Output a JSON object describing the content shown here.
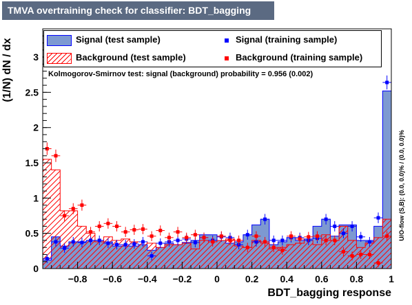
{
  "title": "TMVA overtraining check for classifier: BDT_bagging",
  "legend": {
    "sig_test": "Signal (test sample)",
    "sig_train": "Signal (training sample)",
    "bkg_test": "Background (test sample)",
    "bkg_train": "Background (training sample)"
  },
  "ks_text": "Kolmogorov-Smirnov test: signal (background) probability = 0.956 (0.002)",
  "overflow_text": "U/O-flow (S,B): (0.0, 0.0)% / (0.0, 0.0)%",
  "colors": {
    "signal_fill": "#7d99d1",
    "signal_line": "#0000ff",
    "background": "#ff0000",
    "title_bg": "#5b6a82"
  },
  "chart_data": {
    "type": "histogram",
    "title": "TMVA overtraining check for classifier: BDT_bagging",
    "xlabel": "BDT_bagging response",
    "ylabel": "(1/N) dN / dx",
    "xlim": [
      -1.0,
      1.0
    ],
    "ylim": [
      0,
      3.4
    ],
    "xticks": [
      -0.8,
      -0.6,
      -0.4,
      -0.2,
      0,
      0.2,
      0.4,
      0.6,
      0.8,
      1
    ],
    "xtick_labels": [
      "−0.8",
      "−0.6",
      "−0.4",
      "−0.2",
      "0",
      "0.2",
      "0.4",
      "0.6",
      "0.8",
      "1"
    ],
    "yticks": [
      0,
      0.5,
      1,
      1.5,
      2,
      2.5,
      3
    ],
    "ytick_labels": [
      "0",
      "0.5",
      "1",
      "1.5",
      "2",
      "2.5",
      "3"
    ],
    "bins": 40,
    "signal_test": [
      0.12,
      0.45,
      0.32,
      0.38,
      0.38,
      0.4,
      0.4,
      0.38,
      0.32,
      0.32,
      0.32,
      0.34,
      0.26,
      0.3,
      0.36,
      0.34,
      0.37,
      0.4,
      0.48,
      0.48,
      0.4,
      0.36,
      0.38,
      0.48,
      0.62,
      0.7,
      0.34,
      0.38,
      0.44,
      0.4,
      0.42,
      0.6,
      0.7,
      0.46,
      0.62,
      0.62,
      0.4,
      0.4,
      0.6,
      2.52
    ],
    "signal_train": [
      0.14,
      0.38,
      0.29,
      0.38,
      0.37,
      0.4,
      0.4,
      0.36,
      0.34,
      0.34,
      0.35,
      0.38,
      0.18,
      0.36,
      0.38,
      0.4,
      0.42,
      0.37,
      0.44,
      0.4,
      0.45,
      0.44,
      0.34,
      0.48,
      0.38,
      0.7,
      0.4,
      0.4,
      0.44,
      0.44,
      0.4,
      0.43,
      0.7,
      0.6,
      0.5,
      0.6,
      0.45,
      0.38,
      0.72,
      2.64
    ],
    "background_test": [
      1.55,
      1.4,
      0.82,
      0.82,
      0.6,
      0.5,
      0.38,
      0.45,
      0.4,
      0.42,
      0.38,
      0.38,
      0.36,
      0.3,
      0.34,
      0.34,
      0.36,
      0.28,
      0.4,
      0.38,
      0.4,
      0.42,
      0.32,
      0.3,
      0.4,
      0.36,
      0.28,
      0.3,
      0.34,
      0.36,
      0.4,
      0.34,
      0.48,
      0.4,
      0.6,
      0.4,
      0.3,
      0.36,
      0.44,
      0.7
    ],
    "background_train": [
      1.7,
      1.6,
      0.75,
      0.85,
      0.9,
      0.52,
      0.6,
      0.64,
      0.6,
      0.52,
      0.55,
      0.56,
      0.46,
      0.54,
      0.44,
      0.52,
      0.44,
      0.48,
      0.44,
      0.38,
      0.46,
      0.4,
      0.4,
      0.3,
      0.46,
      0.38,
      0.3,
      0.26,
      0.46,
      0.42,
      0.45,
      0.46,
      0.4,
      0.4,
      0.24,
      0.18,
      0.2,
      0.2,
      0.08,
      0.46
    ]
  }
}
